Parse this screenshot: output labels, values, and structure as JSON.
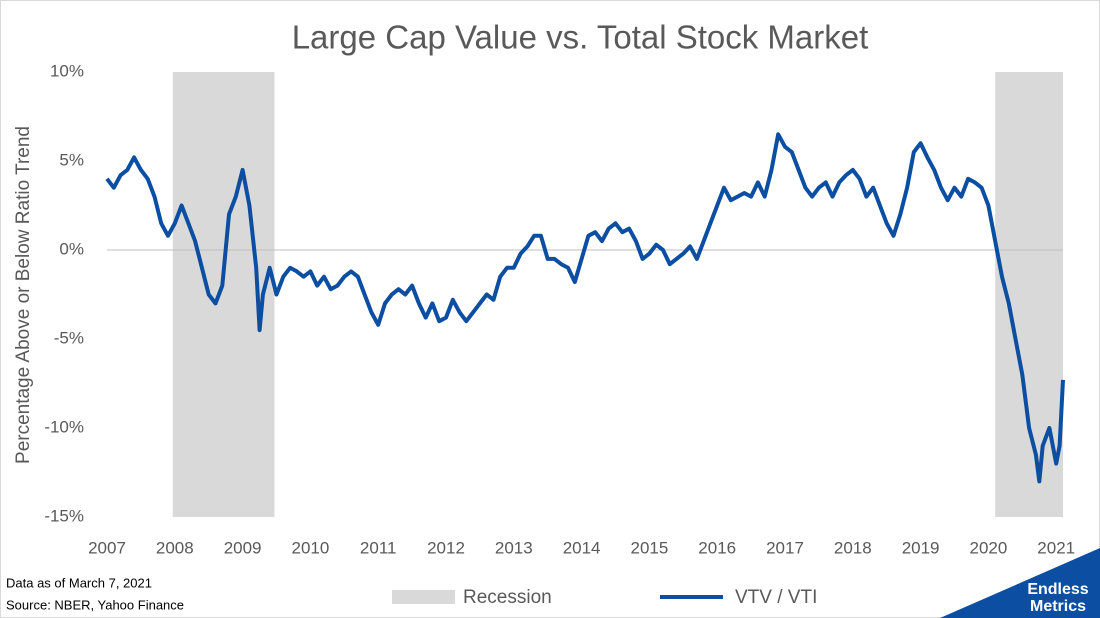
{
  "chart_data": {
    "type": "line",
    "title": "Large Cap Value vs. Total Stock Market",
    "ylabel": "Percentage Above or Below Ratio Trend",
    "xlim": [
      2007,
      2021.1
    ],
    "xticks": [
      2007,
      2008,
      2009,
      2010,
      2011,
      2012,
      2013,
      2014,
      2015,
      2016,
      2017,
      2018,
      2019,
      2020,
      2021
    ],
    "ylim": [
      -15,
      10
    ],
    "yticks": [
      {
        "value": -15,
        "label": "-15%"
      },
      {
        "value": -10,
        "label": "-10%"
      },
      {
        "value": -5,
        "label": "-5%"
      },
      {
        "value": 0,
        "label": "0%"
      },
      {
        "value": 5,
        "label": "5%"
      },
      {
        "value": 10,
        "label": "10%"
      }
    ],
    "grid": false,
    "recessions": {
      "name": "Recession",
      "color": "#d9d9d9",
      "ranges": [
        [
          2007.97,
          2009.47
        ],
        [
          2020.1,
          2021.1
        ]
      ]
    },
    "x": [
      2007.0,
      2007.1,
      2007.2,
      2007.3,
      2007.4,
      2007.5,
      2007.6,
      2007.7,
      2007.8,
      2007.9,
      2008.0,
      2008.1,
      2008.2,
      2008.3,
      2008.4,
      2008.5,
      2008.6,
      2008.7,
      2008.8,
      2008.9,
      2009.0,
      2009.1,
      2009.2,
      2009.25,
      2009.3,
      2009.4,
      2009.5,
      2009.6,
      2009.7,
      2009.8,
      2009.9,
      2010.0,
      2010.1,
      2010.2,
      2010.3,
      2010.4,
      2010.5,
      2010.6,
      2010.7,
      2010.8,
      2010.9,
      2011.0,
      2011.1,
      2011.2,
      2011.3,
      2011.4,
      2011.5,
      2011.6,
      2011.7,
      2011.8,
      2011.9,
      2012.0,
      2012.1,
      2012.2,
      2012.3,
      2012.4,
      2012.5,
      2012.6,
      2012.7,
      2012.8,
      2012.9,
      2013.0,
      2013.1,
      2013.2,
      2013.3,
      2013.4,
      2013.5,
      2013.6,
      2013.7,
      2013.8,
      2013.9,
      2014.0,
      2014.1,
      2014.2,
      2014.3,
      2014.4,
      2014.5,
      2014.6,
      2014.7,
      2014.8,
      2014.9,
      2015.0,
      2015.1,
      2015.2,
      2015.3,
      2015.4,
      2015.5,
      2015.6,
      2015.7,
      2015.8,
      2015.9,
      2016.0,
      2016.1,
      2016.2,
      2016.3,
      2016.4,
      2016.5,
      2016.6,
      2016.7,
      2016.8,
      2016.9,
      2017.0,
      2017.1,
      2017.2,
      2017.3,
      2017.4,
      2017.5,
      2017.6,
      2017.7,
      2017.8,
      2017.9,
      2018.0,
      2018.1,
      2018.2,
      2018.3,
      2018.4,
      2018.5,
      2018.6,
      2018.7,
      2018.8,
      2018.9,
      2019.0,
      2019.1,
      2019.2,
      2019.3,
      2019.4,
      2019.5,
      2019.6,
      2019.7,
      2019.8,
      2019.9,
      2020.0,
      2020.1,
      2020.2,
      2020.3,
      2020.4,
      2020.5,
      2020.6,
      2020.7,
      2020.75,
      2020.8,
      2020.9,
      2021.0,
      2021.05,
      2021.1
    ],
    "series": [
      {
        "name": "VTV / VTI",
        "color": "#0b4ea2",
        "values": [
          4,
          3.5,
          4.2,
          4.5,
          5.2,
          4.5,
          4,
          3,
          1.5,
          0.8,
          1.5,
          2.5,
          1.5,
          0.5,
          -1,
          -2.5,
          -3,
          -2,
          2,
          3,
          4.5,
          2.5,
          -1,
          -4.5,
          -2.5,
          -1,
          -2.5,
          -1.5,
          -1,
          -1.2,
          -1.5,
          -1.2,
          -2,
          -1.5,
          -2.2,
          -2,
          -1.5,
          -1.2,
          -1.5,
          -2.5,
          -3.5,
          -4.2,
          -3,
          -2.5,
          -2.2,
          -2.5,
          -2,
          -3,
          -3.8,
          -3,
          -4,
          -3.8,
          -2.8,
          -3.5,
          -4,
          -3.5,
          -3,
          -2.5,
          -2.8,
          -1.5,
          -1,
          -1,
          -0.2,
          0.2,
          0.8,
          0.8,
          -0.5,
          -0.5,
          -0.8,
          -1,
          -1.8,
          -0.5,
          0.8,
          1,
          0.5,
          1.2,
          1.5,
          1,
          1.2,
          0.5,
          -0.5,
          -0.2,
          0.3,
          0,
          -0.8,
          -0.5,
          -0.2,
          0.2,
          -0.5,
          0.5,
          1.5,
          2.5,
          3.5,
          2.8,
          3,
          3.2,
          3,
          3.8,
          3,
          4.5,
          6.5,
          5.8,
          5.5,
          4.5,
          3.5,
          3,
          3.5,
          3.8,
          3,
          3.8,
          4.2,
          4.5,
          4,
          3,
          3.5,
          2.5,
          1.5,
          0.8,
          2,
          3.5,
          5.5,
          6,
          5.2,
          4.5,
          3.5,
          2.8,
          3.5,
          3,
          4,
          3.8,
          3.5,
          2.5,
          0.5,
          -1.5,
          -3,
          -5,
          -7,
          -10,
          -11.5,
          -13,
          -11,
          -10,
          -12,
          -11,
          -7.3
        ]
      }
    ],
    "notes": [
      "Data as of March 7, 2021",
      "Source: NBER, Yahoo Finance"
    ],
    "logo": [
      "Endless",
      "Metrics"
    ]
  }
}
